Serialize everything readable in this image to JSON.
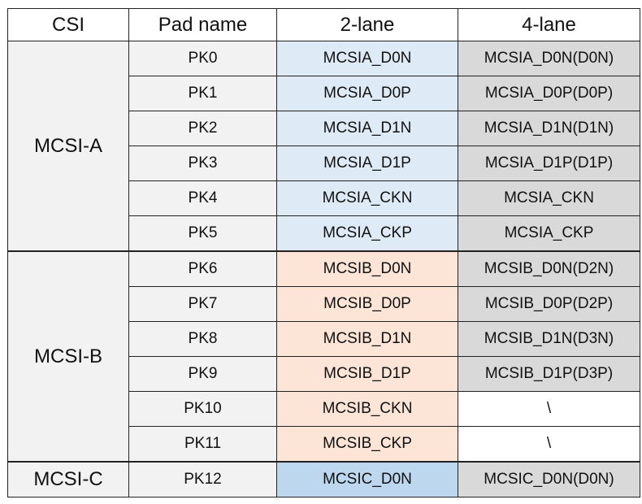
{
  "headers": [
    "CSI",
    "Pad name",
    "2-lane",
    "4-lane"
  ],
  "groups": [
    {
      "csi": "MCSI-A",
      "rows": [
        {
          "pad": "PK0",
          "two_lane": "MCSIA_D0N",
          "four_lane": "MCSIA_D0N(D0N)"
        },
        {
          "pad": "PK1",
          "two_lane": "MCSIA_D0P",
          "four_lane": "MCSIA_D0P(D0P)"
        },
        {
          "pad": "PK2",
          "two_lane": "MCSIA_D1N",
          "four_lane": "MCSIA_D1N(D1N)"
        },
        {
          "pad": "PK3",
          "two_lane": "MCSIA_D1P",
          "four_lane": "MCSIA_D1P(D1P)"
        },
        {
          "pad": "PK4",
          "two_lane": "MCSIA_CKN",
          "four_lane": "MCSIA_CKN"
        },
        {
          "pad": "PK5",
          "two_lane": "MCSIA_CKP",
          "four_lane": "MCSIA_CKP"
        }
      ]
    },
    {
      "csi": "MCSI-B",
      "rows": [
        {
          "pad": "PK6",
          "two_lane": "MCSIB_D0N",
          "four_lane": "MCSIB_D0N(D2N)"
        },
        {
          "pad": "PK7",
          "two_lane": "MCSIB_D0P",
          "four_lane": "MCSIB_D0P(D2P)"
        },
        {
          "pad": "PK8",
          "two_lane": "MCSIB_D1N",
          "four_lane": "MCSIB_D1N(D3N)"
        },
        {
          "pad": "PK9",
          "two_lane": "MCSIB_D1P",
          "four_lane": "MCSIB_D1P(D3P)"
        },
        {
          "pad": "PK10",
          "two_lane": "MCSIB_CKN",
          "four_lane": "\\"
        },
        {
          "pad": "PK11",
          "two_lane": "MCSIB_CKP",
          "four_lane": "\\"
        }
      ]
    },
    {
      "csi": "MCSI-C",
      "rows": [
        {
          "pad": "PK12",
          "two_lane": "MCSIC_D0N",
          "four_lane": "MCSIC_D0N(D0N)"
        }
      ]
    }
  ],
  "colors": {
    "csi_pad_bg": "#f2f2f2",
    "mcsi_a_2lane": "#deebf7",
    "mcsi_b_2lane": "#fce4d6",
    "mcsi_c_2lane": "#bdd7ee",
    "four_lane_bg": "#d9d9d9"
  }
}
